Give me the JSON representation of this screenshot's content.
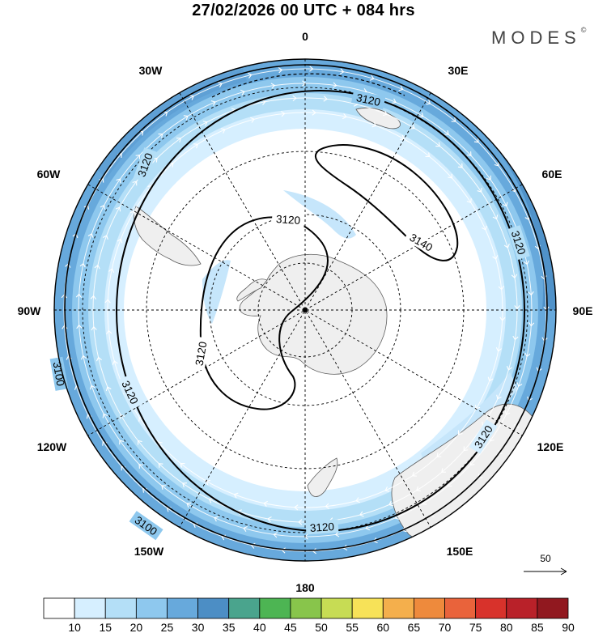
{
  "header": {
    "title": "27/02/2026  00 UTC  + 084 hrs",
    "brand": "MODES",
    "brand_mark": "©"
  },
  "map": {
    "projection": "south-polar-stereographic",
    "center_lon": 0,
    "longitude_labels": [
      "0",
      "30E",
      "60E",
      "90E",
      "120E",
      "150E",
      "180",
      "150W",
      "120W",
      "90W",
      "60W",
      "30W"
    ],
    "contours": [
      {
        "level": "3100"
      },
      {
        "level": "3100"
      },
      {
        "level": "3120"
      },
      {
        "level": "3120"
      },
      {
        "level": "3120"
      },
      {
        "level": "3120"
      },
      {
        "level": "3120"
      },
      {
        "level": "3120"
      },
      {
        "level": "3140"
      }
    ]
  },
  "vector_reference": {
    "value": "50"
  },
  "colorbar": {
    "labels": [
      "10",
      "15",
      "20",
      "25",
      "30",
      "35",
      "40",
      "45",
      "50",
      "55",
      "60",
      "65",
      "70",
      "75",
      "80",
      "85",
      "90"
    ],
    "colors": [
      "#ffffff",
      "#d6efff",
      "#b4dff7",
      "#8ec8ee",
      "#67a9dc",
      "#4c8ec5",
      "#4aa48d",
      "#4db553",
      "#88c54b",
      "#c7dc54",
      "#f7e258",
      "#f4af4c",
      "#ee8a3c",
      "#e9633b",
      "#d8322b",
      "#b92129",
      "#91181f"
    ]
  },
  "colors": {
    "land": "#efefef",
    "coast": "#5c5c5c",
    "contour": "#000000",
    "grid": "#000000",
    "arrow": "#ffffff"
  }
}
